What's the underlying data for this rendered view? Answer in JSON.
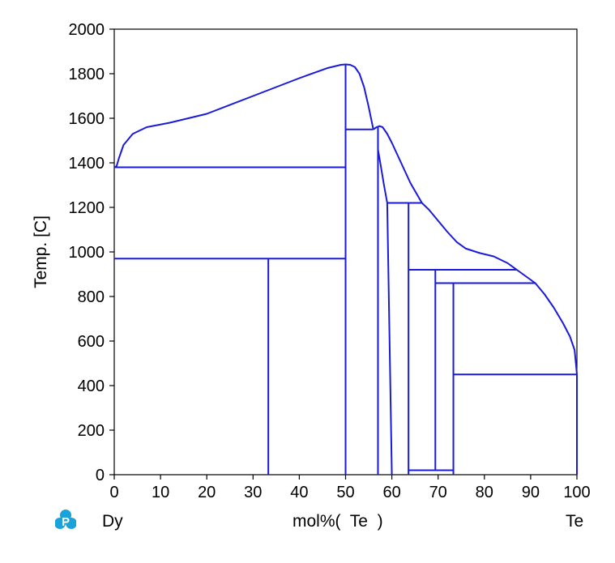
{
  "chart_data": {
    "type": "line",
    "title": "",
    "xlabel": "mol%(  Te  )",
    "ylabel": "Temp.  [C]",
    "xlim": [
      0,
      100
    ],
    "ylim": [
      0,
      2000
    ],
    "xticks": [
      0,
      10,
      20,
      30,
      40,
      50,
      60,
      70,
      80,
      90,
      100
    ],
    "yticks": [
      0,
      200,
      400,
      600,
      800,
      1000,
      1200,
      1400,
      1600,
      1800,
      2000
    ],
    "left_component": "Dy",
    "right_component": "Te",
    "line_color": "#1a1adc",
    "grid": false,
    "series": [
      {
        "kind": "liquidus",
        "points": [
          [
            0,
            1380
          ],
          [
            0.5,
            1385
          ],
          [
            1,
            1420
          ],
          [
            2,
            1480
          ],
          [
            4,
            1530
          ],
          [
            7,
            1560
          ],
          [
            12,
            1580
          ],
          [
            20,
            1620
          ],
          [
            30,
            1700
          ],
          [
            40,
            1780
          ],
          [
            46,
            1825
          ],
          [
            49,
            1840
          ],
          [
            50,
            1842
          ],
          [
            51,
            1840
          ],
          [
            52,
            1830
          ],
          [
            53,
            1800
          ],
          [
            54,
            1740
          ],
          [
            55,
            1650
          ],
          [
            56,
            1550
          ]
        ]
      },
      {
        "kind": "liquidus",
        "points": [
          [
            56,
            1550
          ],
          [
            56.7,
            1560
          ],
          [
            57.3,
            1565
          ],
          [
            58,
            1560
          ],
          [
            59,
            1530
          ],
          [
            60,
            1490
          ],
          [
            62,
            1400
          ],
          [
            64,
            1310
          ],
          [
            66.5,
            1220
          ]
        ]
      },
      {
        "kind": "liquidus",
        "points": [
          [
            66.5,
            1220
          ],
          [
            68,
            1190
          ],
          [
            70,
            1140
          ],
          [
            72,
            1090
          ],
          [
            74,
            1045
          ],
          [
            76,
            1015
          ],
          [
            79,
            995
          ],
          [
            82,
            980
          ],
          [
            85,
            950
          ],
          [
            87,
            920
          ],
          [
            89,
            890
          ],
          [
            91,
            860
          ],
          [
            93,
            810
          ],
          [
            95,
            750
          ],
          [
            97,
            680
          ],
          [
            98.5,
            620
          ],
          [
            99.5,
            560
          ],
          [
            100,
            450
          ]
        ]
      },
      {
        "kind": "solidus",
        "points": [
          [
            57,
            1460
          ],
          [
            57.5,
            1400
          ],
          [
            58.3,
            1300
          ],
          [
            59,
            1220
          ]
        ]
      },
      {
        "kind": "solidus",
        "points": [
          [
            59,
            1220
          ],
          [
            60,
            0
          ]
        ]
      }
    ],
    "invariant_lines": [
      {
        "x1": 0,
        "x2": 50,
        "y": 1380
      },
      {
        "x1": 0,
        "x2": 50,
        "y": 970
      },
      {
        "x1": 50,
        "x2": 56,
        "y": 1550
      },
      {
        "x1": 59,
        "x2": 66.5,
        "y": 1220
      },
      {
        "x1": 63.6,
        "x2": 87,
        "y": 920
      },
      {
        "x1": 69.4,
        "x2": 91,
        "y": 860
      },
      {
        "x1": 73.3,
        "x2": 100,
        "y": 450
      },
      {
        "x1": 63.6,
        "x2": 73.3,
        "y": 20
      }
    ],
    "phase_lines": [
      {
        "x": 33.3,
        "y1": 0,
        "y2": 970
      },
      {
        "x": 50,
        "y1": 0,
        "y2": 1842
      },
      {
        "x": 57,
        "y1": 0,
        "y2": 1560
      },
      {
        "x": 63.6,
        "y1": 0,
        "y2": 1220
      },
      {
        "x": 69.4,
        "y1": 20,
        "y2": 920
      },
      {
        "x": 73.3,
        "y1": 0,
        "y2": 860
      },
      {
        "x": 100,
        "y1": 0,
        "y2": 450
      }
    ]
  },
  "footer": {
    "left": "Dy",
    "center": "mol%(  Te  )",
    "right": "Te",
    "logo_icon": "pandat-logo-icon"
  }
}
